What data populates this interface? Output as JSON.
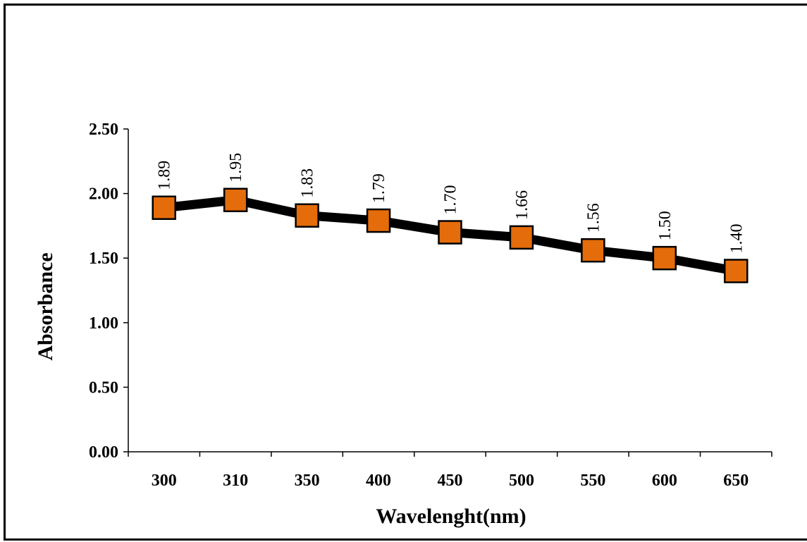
{
  "chart_data": {
    "type": "line",
    "categories": [
      "300",
      "310",
      "350",
      "400",
      "450",
      "500",
      "550",
      "600",
      "650"
    ],
    "series": [
      {
        "values": [
          1.89,
          1.95,
          1.83,
          1.79,
          1.7,
          1.66,
          1.56,
          1.5,
          1.4
        ]
      }
    ],
    "data_labels": [
      "1.89",
      "1.95",
      "1.83",
      "1.79",
      "1.70",
      "1.66",
      "1.56",
      "1.50",
      "1.40"
    ],
    "y_ticks": [
      "0.00",
      "0.50",
      "1.00",
      "1.50",
      "2.00",
      "2.50"
    ],
    "xlabel": "Wavelenght(nm)",
    "ylabel": "Absorbance",
    "ylim": [
      0,
      2.5
    ],
    "grid": false,
    "legend": "none",
    "colors": {
      "line": "#000000",
      "marker_fill": "#E46C0A",
      "marker_edge": "#000000"
    }
  }
}
